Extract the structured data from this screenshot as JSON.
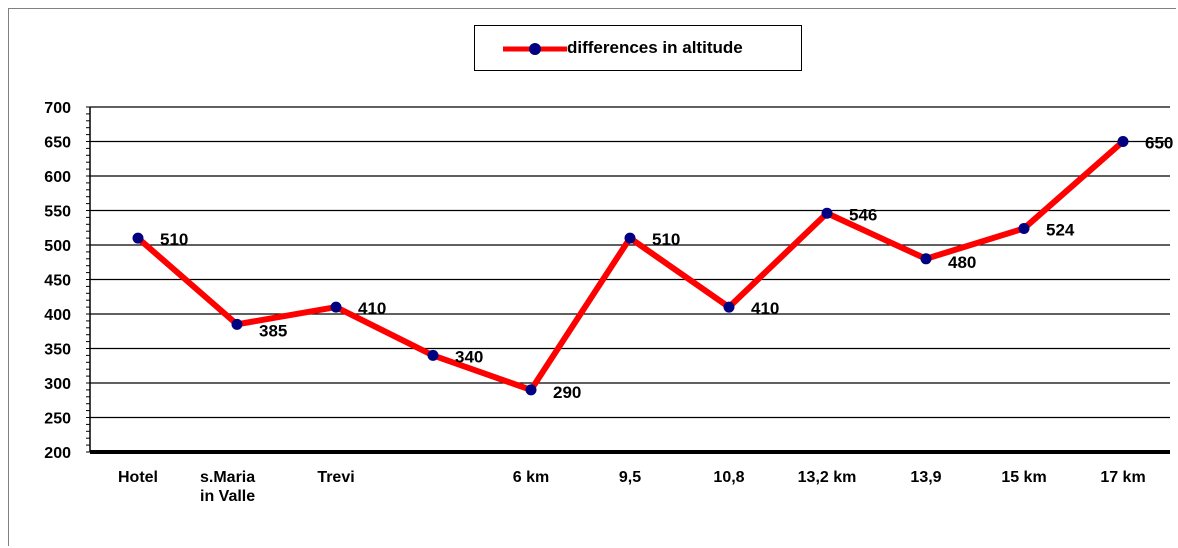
{
  "chart_data": {
    "type": "line",
    "categories": [
      "Hotel",
      "s.Maria\nin Valle",
      "Trevi",
      "",
      "6 km",
      "9,5",
      "10,8",
      "13,2 km",
      "13,9",
      "15 km",
      "17 km"
    ],
    "series": [
      {
        "name": "differences in altitude",
        "values": [
          510,
          385,
          410,
          340,
          290,
          510,
          410,
          546,
          480,
          524,
          650
        ],
        "line_color": "#ff0000",
        "marker_color": "#000080"
      }
    ],
    "data_labels": [
      "510",
      "385",
      "410",
      "340",
      "290",
      "510",
      "410",
      "546",
      "480",
      "524",
      "650"
    ],
    "ylim": [
      200,
      700
    ],
    "y_ticks": [
      "200",
      "250",
      "300",
      "350",
      "400",
      "450",
      "500",
      "550",
      "600",
      "650",
      "700"
    ],
    "grid": true,
    "legend_position": "top-center"
  }
}
